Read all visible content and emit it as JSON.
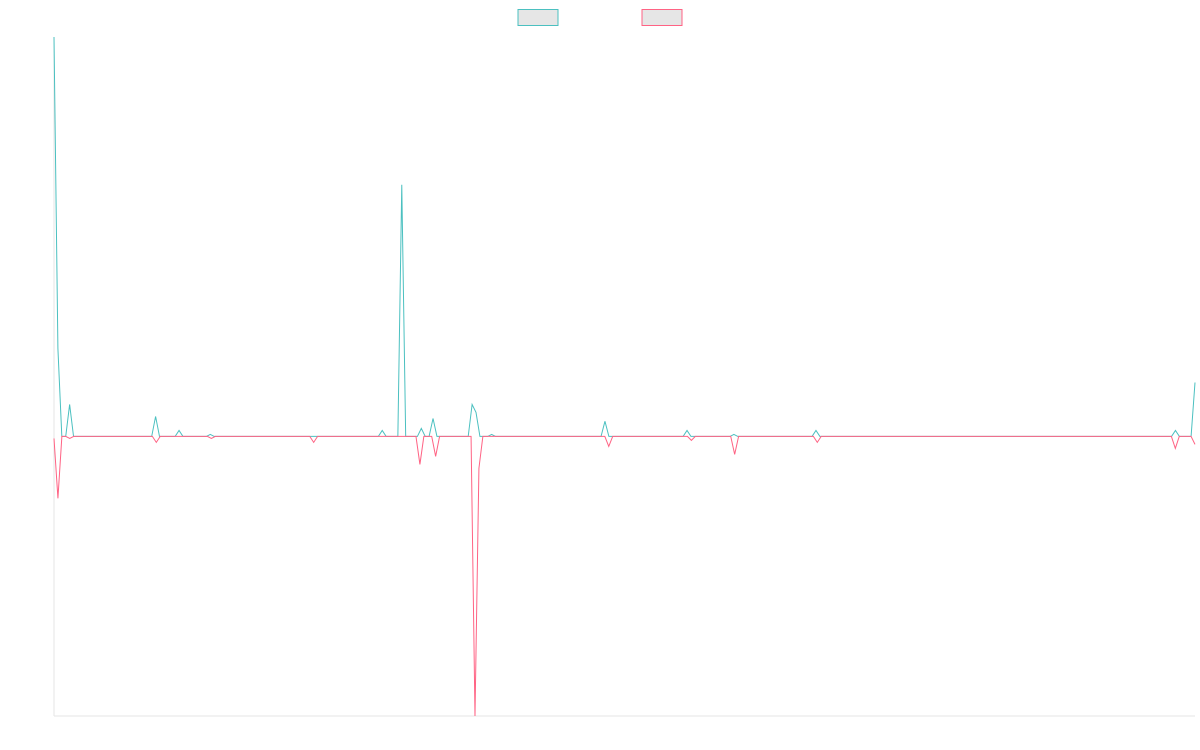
{
  "chart_data": {
    "type": "line",
    "title": "",
    "xlabel": "",
    "ylabel": "",
    "ylim": [
      -0.7,
      1.0
    ],
    "grid": false,
    "legend_position": "top-center",
    "series": [
      {
        "color": "#4bc0c0",
        "values": [
          1.0,
          0.22,
          0.0,
          0.0,
          0.08,
          0.0,
          0.0,
          0.0,
          0.0,
          0.0,
          0.0,
          0.0,
          0.0,
          0.0,
          0.0,
          0.0,
          0.0,
          0.0,
          0.0,
          0.0,
          0.0,
          0.0,
          0.0,
          0.0,
          0.0,
          0.0,
          0.05,
          0.0,
          0.0,
          0.0,
          0.0,
          0.0,
          0.015,
          0.0,
          0.0,
          0.0,
          0.0,
          0.0,
          0.0,
          0.0,
          0.005,
          0.0,
          0.0,
          0.0,
          0.0,
          0.0,
          0.0,
          0.0,
          0.0,
          0.0,
          0.0,
          0.0,
          0.0,
          0.0,
          0.0,
          0.0,
          0.0,
          0.0,
          0.0,
          0.0,
          0.0,
          0.0,
          0.0,
          0.0,
          0.0,
          0.0,
          0.0,
          0.0,
          0.0,
          0.0,
          0.0,
          0.0,
          0.0,
          0.0,
          0.0,
          0.0,
          0.0,
          0.0,
          0.0,
          0.0,
          0.0,
          0.0,
          0.0,
          0.0,
          0.015,
          0.0,
          0.0,
          0.0,
          0.0,
          0.63,
          0.0,
          0.0,
          0.0,
          0.0,
          0.02,
          0.0,
          0.0,
          0.045,
          0.0,
          0.0,
          0.0,
          0.0,
          0.0,
          0.0,
          0.0,
          0.0,
          0.0,
          0.08,
          0.06,
          0.0,
          0.0,
          0.0,
          0.005,
          0.0,
          0.0,
          0.0,
          0.0,
          0.0,
          0.0,
          0.0,
          0.0,
          0.0,
          0.0,
          0.0,
          0.0,
          0.0,
          0.0,
          0.0,
          0.0,
          0.0,
          0.0,
          0.0,
          0.0,
          0.0,
          0.0,
          0.0,
          0.0,
          0.0,
          0.0,
          0.0,
          0.0,
          0.038,
          0.0,
          0.0,
          0.0,
          0.0,
          0.0,
          0.0,
          0.0,
          0.0,
          0.0,
          0.0,
          0.0,
          0.0,
          0.0,
          0.0,
          0.0,
          0.0,
          0.0,
          0.0,
          0.0,
          0.0,
          0.015,
          0.0,
          0.0,
          0.0,
          0.0,
          0.0,
          0.0,
          0.0,
          0.0,
          0.0,
          0.0,
          0.0,
          0.005,
          0.0,
          0.0,
          0.0,
          0.0,
          0.0,
          0.0,
          0.0,
          0.0,
          0.0,
          0.0,
          0.0,
          0.0,
          0.0,
          0.0,
          0.0,
          0.0,
          0.0,
          0.0,
          0.0,
          0.0,
          0.015,
          0.0,
          0.0,
          0.0,
          0.0,
          0.0,
          0.0,
          0.0,
          0.0,
          0.0,
          0.0,
          0.0,
          0.0,
          0.0,
          0.0,
          0.0,
          0.0,
          0.0,
          0.0,
          0.0,
          0.0,
          0.0,
          0.0,
          0.0,
          0.0,
          0.0,
          0.0,
          0.0,
          0.0,
          0.0,
          0.0,
          0.0,
          0.0,
          0.0,
          0.0,
          0.0,
          0.0,
          0.0,
          0.0,
          0.0,
          0.0,
          0.0,
          0.0,
          0.0,
          0.0,
          0.0,
          0.0,
          0.0,
          0.0,
          0.0,
          0.0,
          0.0,
          0.0,
          0.0,
          0.0,
          0.0,
          0.0,
          0.0,
          0.0,
          0.0,
          0.0,
          0.0,
          0.0,
          0.0,
          0.0,
          0.0,
          0.0,
          0.0,
          0.0,
          0.0,
          0.0,
          0.0,
          0.0,
          0.0,
          0.0,
          0.0,
          0.0,
          0.0,
          0.0,
          0.0,
          0.0,
          0.0,
          0.0,
          0.0,
          0.0,
          0.0,
          0.0,
          0.0,
          0.0,
          0.0,
          0.0,
          0.0,
          0.015,
          0.0,
          0.0,
          0.0,
          0.0,
          0.135
        ]
      },
      {
        "color": "#ff6384",
        "values": [
          -0.005,
          -0.155,
          0.0,
          0.0,
          -0.005,
          0.0,
          0.0,
          0.0,
          0.0,
          0.0,
          0.0,
          0.0,
          0.0,
          0.0,
          0.0,
          0.0,
          0.0,
          0.0,
          0.0,
          0.0,
          0.0,
          0.0,
          0.0,
          0.0,
          0.0,
          0.0,
          -0.015,
          0.0,
          0.0,
          0.0,
          0.0,
          0.0,
          0.0,
          0.0,
          0.0,
          0.0,
          0.0,
          0.0,
          0.0,
          0.0,
          -0.005,
          0.0,
          0.0,
          0.0,
          0.0,
          0.0,
          0.0,
          0.0,
          0.0,
          0.0,
          0.0,
          0.0,
          0.0,
          0.0,
          0.0,
          0.0,
          0.0,
          0.0,
          0.0,
          0.0,
          0.0,
          0.0,
          0.0,
          0.0,
          0.0,
          0.0,
          -0.015,
          0.0,
          0.0,
          0.0,
          0.0,
          0.0,
          0.0,
          0.0,
          0.0,
          0.0,
          0.0,
          0.0,
          0.0,
          0.0,
          0.0,
          0.0,
          0.0,
          0.0,
          0.0,
          0.0,
          0.0,
          0.0,
          0.0,
          0.0,
          0.0,
          0.0,
          0.0,
          -0.07,
          0.0,
          0.0,
          0.0,
          -0.05,
          0.0,
          0.0,
          0.0,
          0.0,
          0.0,
          0.0,
          0.0,
          0.0,
          0.0,
          -0.7,
          -0.08,
          0.0,
          0.0,
          0.0,
          0.0,
          0.0,
          0.0,
          0.0,
          0.0,
          0.0,
          0.0,
          0.0,
          0.0,
          0.0,
          0.0,
          0.0,
          0.0,
          0.0,
          0.0,
          0.0,
          0.0,
          0.0,
          0.0,
          0.0,
          0.0,
          0.0,
          0.0,
          0.0,
          0.0,
          0.0,
          0.0,
          0.0,
          0.0,
          -0.025,
          0.0,
          0.0,
          0.0,
          0.0,
          0.0,
          0.0,
          0.0,
          0.0,
          0.0,
          0.0,
          0.0,
          0.0,
          0.0,
          0.0,
          0.0,
          0.0,
          0.0,
          0.0,
          0.0,
          0.0,
          -0.01,
          0.0,
          0.0,
          0.0,
          0.0,
          0.0,
          0.0,
          0.0,
          0.0,
          0.0,
          0.0,
          -0.045,
          0.0,
          0.0,
          0.0,
          0.0,
          0.0,
          0.0,
          0.0,
          0.0,
          0.0,
          0.0,
          0.0,
          0.0,
          0.0,
          0.0,
          0.0,
          0.0,
          0.0,
          0.0,
          0.0,
          0.0,
          -0.015,
          0.0,
          0.0,
          0.0,
          0.0,
          0.0,
          0.0,
          0.0,
          0.0,
          0.0,
          0.0,
          0.0,
          0.0,
          0.0,
          0.0,
          0.0,
          0.0,
          0.0,
          0.0,
          0.0,
          0.0,
          0.0,
          0.0,
          0.0,
          0.0,
          0.0,
          0.0,
          0.0,
          0.0,
          0.0,
          0.0,
          0.0,
          0.0,
          0.0,
          0.0,
          0.0,
          0.0,
          0.0,
          0.0,
          0.0,
          0.0,
          0.0,
          0.0,
          0.0,
          0.0,
          0.0,
          0.0,
          0.0,
          0.0,
          0.0,
          0.0,
          0.0,
          0.0,
          0.0,
          0.0,
          0.0,
          0.0,
          0.0,
          0.0,
          0.0,
          0.0,
          0.0,
          0.0,
          0.0,
          0.0,
          0.0,
          0.0,
          0.0,
          0.0,
          0.0,
          0.0,
          0.0,
          0.0,
          0.0,
          0.0,
          0.0,
          0.0,
          0.0,
          0.0,
          0.0,
          0.0,
          0.0,
          0.0,
          0.0,
          0.0,
          0.0,
          0.0,
          0.0,
          0.0,
          0.0,
          0.0,
          -0.03,
          0.0,
          0.0,
          0.0,
          0.0,
          -0.02
        ]
      }
    ]
  }
}
